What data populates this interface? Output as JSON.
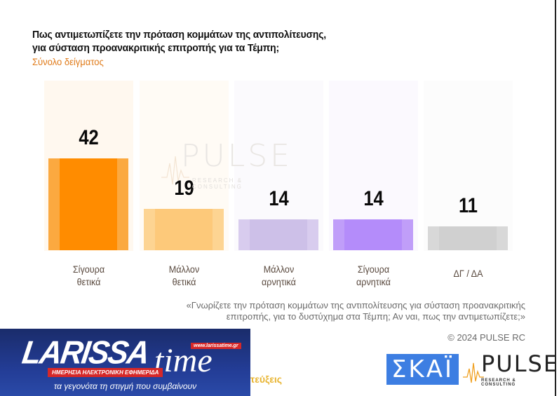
{
  "header": {
    "title_line1": "Πως αντιμετωπίζετε την πρόταση κομμάτων της αντιπολίτευσης,",
    "title_line2": "για σύσταση προανακριτικής επιτροπής για τα Τέμπη;",
    "subtitle": "Σύνολο δείγματος"
  },
  "chart_data": {
    "type": "bar",
    "title": "Πως αντιμετωπίζετε την πρόταση κομμάτων της αντιπολίτευσης, για σύσταση προανακριτικής επιτροπής για τα Τέμπη;",
    "subtitle": "Σύνολο δείγματος",
    "categories": [
      "Σίγουρα θετικά",
      "Μάλλον θετικά",
      "Μάλλον αρνητικά",
      "Σίγουρα αρνητικά",
      "ΔΓ / ΔΑ"
    ],
    "values": [
      42,
      19,
      14,
      14,
      11
    ],
    "value_labels": [
      "42",
      "19",
      "14",
      "14",
      "11"
    ],
    "category_lines": [
      [
        "Σίγουρα",
        "θετικά"
      ],
      [
        "Μάλλον",
        "θετικά"
      ],
      [
        "Μάλλον",
        "αρνητικά"
      ],
      [
        "Σίγουρα",
        "αρνητικά"
      ],
      [
        "ΔΓ / ΔΑ",
        ""
      ]
    ],
    "colors": [
      "#ff8c00",
      "#fdc97a",
      "#cdc0e8",
      "#b48cfa",
      "#d0d0d0"
    ],
    "edge_colors": [
      "#fba940",
      "#fdd492",
      "#d8ccee",
      "#c09ef9",
      "#d8d8d8"
    ],
    "panel_colors": [
      "#fff8ef",
      "#fffbf5",
      "#fbfafd",
      "#fbf9fe",
      "#fcfcfc"
    ],
    "xlabel": "",
    "ylabel": "",
    "ylim": [
      0,
      80
    ],
    "grid": false,
    "legend": "none"
  },
  "watermark": {
    "text": "PULSE",
    "subtext": "RESEARCH & CONSULTING"
  },
  "footer": {
    "question_line1": "«Γνωρίζετε την πρόταση κομμάτων της αντιπολίτευσης για σύσταση προανακριτικής",
    "question_line2": "επιτροπής, για το δυστύχημα στα Τέμπη; Αν ναι, πως την αντιμετωπίζετε;»",
    "copyright": "© 2024 PULSE RC",
    "partial_text": "τεύξεις"
  },
  "larissa_banner": {
    "brand": "LARISSA",
    "brand2": "time",
    "url": "www.larissatime.gr",
    "tagline": "ΗΜΕΡΗΣΙΑ ΗΛΕΚΤΡΟΝΙΚΗ ΕΦΗΜΕΡΙΔΑ",
    "slogan": "τα γεγονότα τη στιγμή που συμβαίνουν"
  },
  "logos": {
    "skai": "ΣΚΑΪ",
    "pulse": "PULSE",
    "pulse_sub": "RESEARCH & CONSULTING"
  }
}
